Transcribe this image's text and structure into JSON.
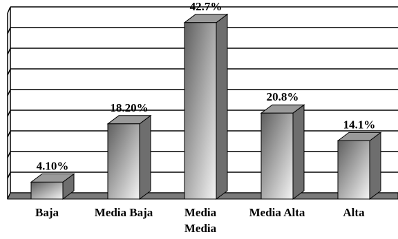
{
  "chart_data": {
    "type": "bar",
    "title": "",
    "xlabel": "",
    "ylabel": "",
    "categories": [
      [
        "Baja"
      ],
      [
        "Media Baja"
      ],
      [
        "Media",
        "Media"
      ],
      [
        "Media Alta"
      ],
      [
        "Alta"
      ]
    ],
    "values": [
      4.1,
      18.2,
      42.7,
      20.8,
      14.1
    ],
    "data_labels": [
      "4.10%",
      "18.20%",
      "42.7%",
      "20.8%",
      "14.1%"
    ],
    "ylim": [
      0,
      45
    ],
    "y_gridlines": [
      5,
      10,
      15,
      20,
      25,
      30,
      35,
      40,
      45
    ],
    "grid": true,
    "legend": "none",
    "style": "3d-cylinder-gradient",
    "colors": {
      "bar_light": "#f4f4f4",
      "bar_dark": "#5f5f5f",
      "bar_side": "#6e6e6e",
      "bar_top": "#9a9a9a",
      "floor": "#7a7a7a",
      "grid": "#000000"
    }
  }
}
